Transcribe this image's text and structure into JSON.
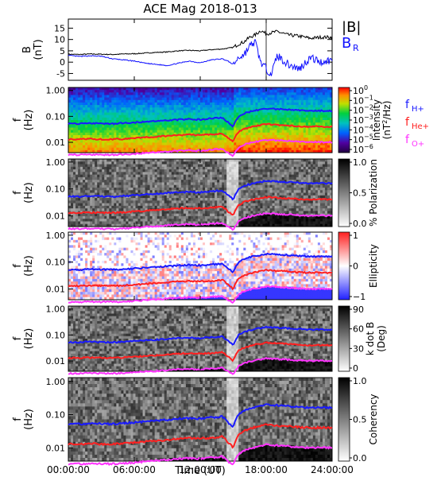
{
  "chart_data": {
    "type": "line",
    "title": "ACE Mag 2018-013",
    "xlabel": "Time (UT)",
    "x_ticks": [
      "00:00:00",
      "06:00:00",
      "12:00:00",
      "18:00:00",
      "24:00:00"
    ],
    "x_tick_hours": [
      0,
      6,
      12,
      18,
      24
    ],
    "xlim_hours": [
      0,
      24
    ],
    "colors": {
      "B_total": "#000000",
      "B_R": "#1010ff",
      "f_H": "#1a1aff",
      "f_He": "#ff2020",
      "f_O": "#ff33ff"
    },
    "gyrofrequency_series": [
      {
        "label": "f",
        "sub": "H+",
        "key": "f_H"
      },
      {
        "label": "f",
        "sub": "He+",
        "key": "f_He"
      },
      {
        "label": "f",
        "sub": "O+",
        "key": "f_O"
      }
    ],
    "panels": [
      {
        "id": "bfield",
        "ylabel": [
          "B",
          "(nT)"
        ],
        "ylim": [
          -8,
          19
        ],
        "yticks": [
          15,
          10,
          5,
          0,
          -5
        ],
        "legend": [
          {
            "label": "|B|",
            "sub": "",
            "color": "#000000"
          },
          {
            "label": "B",
            "sub": "R",
            "color": "#1010ff"
          }
        ],
        "series": [
          {
            "key": "B_total",
            "x": [
              0,
              1,
              2,
              3,
              4,
              5,
              6,
              7,
              8,
              9,
              10,
              11,
              12,
              13,
              14,
              15,
              15.5,
              16,
              16.5,
              17,
              17.5,
              18,
              18.5,
              19,
              20,
              21,
              22,
              23,
              24
            ],
            "y": [
              3.5,
              3.4,
              3.6,
              3.5,
              3.4,
              3.6,
              3.7,
              4.0,
              4.3,
              4.5,
              5.0,
              5.2,
              5.0,
              5.5,
              5.8,
              6.5,
              8,
              9,
              11,
              12,
              14,
              12.5,
              13,
              13.5,
              12,
              11.5,
              10.5,
              11,
              11
            ]
          },
          {
            "key": "B_R",
            "x": [
              0,
              1,
              2,
              3,
              4,
              5,
              6,
              7,
              8,
              9,
              10,
              11,
              12,
              13,
              14,
              14.5,
              15,
              15.5,
              16,
              16.5,
              17,
              17.5,
              18,
              18.5,
              19,
              20,
              21,
              22,
              23,
              24
            ],
            "y": [
              3.0,
              2.5,
              2.8,
              2.6,
              1.5,
              1.0,
              0.5,
              -0.5,
              -1.0,
              -1.5,
              -0.5,
              0.5,
              -0.3,
              1.0,
              1.5,
              0.5,
              -1.0,
              2.0,
              3.5,
              7,
              9,
              0,
              -3,
              -5,
              3,
              -1,
              -3,
              2,
              0,
              1
            ]
          }
        ]
      },
      {
        "id": "intensity",
        "ylabel": [
          "f",
          "(Hz)"
        ],
        "yticks": [
          "1.00",
          "0.10",
          "0.01"
        ],
        "ylim_log": [
          0.004,
          1.3
        ],
        "colorbar_ticks": [
          "10",
          "10",
          "10",
          "10",
          "10",
          "10",
          "10"
        ],
        "colorbar_exps": [
          "0",
          "−1",
          "−2",
          "−3",
          "−4",
          "−5",
          "−6"
        ],
        "colorbar_label": "Intensity",
        "colorbar_label2": "(nT",
        "colorbar_label_sup": "2",
        "colorbar_label3": "/Hz)",
        "colormap": "spectral",
        "show_gyro_labels": true
      },
      {
        "id": "polarization",
        "ylabel": [
          "f",
          "(Hz)"
        ],
        "yticks": [
          "1.00",
          "0.10",
          "0.01"
        ],
        "ylim_log": [
          0.004,
          1.3
        ],
        "colorbar_ticks": [
          "1.0",
          "0.5",
          "0.0"
        ],
        "colorbar_label": "% Polarization",
        "colormap": "gray"
      },
      {
        "id": "ellipticity",
        "ylabel": [
          "f",
          "(Hz)"
        ],
        "yticks": [
          "1.00",
          "0.10",
          "0.01"
        ],
        "ylim_log": [
          0.004,
          1.3
        ],
        "colorbar_ticks": [
          "1",
          "0",
          "−1"
        ],
        "colorbar_label": "Ellipticity",
        "colormap": "bwr"
      },
      {
        "id": "kdotb",
        "ylabel": [
          "f",
          "(Hz)"
        ],
        "yticks": [
          "1.00",
          "0.10",
          "0.01"
        ],
        "ylim_log": [
          0.004,
          1.3
        ],
        "colorbar_ticks": [
          "90",
          "60",
          "30",
          "0"
        ],
        "colorbar_label": "k dot B",
        "colorbar_label2": "(Deg)",
        "colormap": "gray"
      },
      {
        "id": "coherency",
        "ylabel": [
          "f",
          "(Hz)"
        ],
        "yticks": [
          "1.00",
          "0.10",
          "0.01"
        ],
        "ylim_log": [
          0.004,
          1.3
        ],
        "colorbar_ticks": [
          "1.0",
          "0.5",
          "0.0"
        ],
        "colorbar_label": "Coherency",
        "colormap": "gray"
      }
    ],
    "gyrofrequencies": {
      "x": [
        0,
        1,
        2,
        3,
        4,
        5,
        6,
        7,
        8,
        9,
        10,
        11,
        12,
        13,
        14,
        14.5,
        15,
        15.5,
        16,
        17,
        18,
        19,
        20,
        21,
        22,
        23,
        24
      ],
      "f_H": [
        0.053,
        0.052,
        0.055,
        0.053,
        0.052,
        0.055,
        0.058,
        0.062,
        0.066,
        0.07,
        0.075,
        0.078,
        0.075,
        0.082,
        0.088,
        0.06,
        0.04,
        0.1,
        0.13,
        0.17,
        0.2,
        0.19,
        0.18,
        0.17,
        0.16,
        0.165,
        0.16
      ],
      "f_He": [
        0.013,
        0.013,
        0.0135,
        0.013,
        0.013,
        0.0135,
        0.0145,
        0.0155,
        0.0165,
        0.0175,
        0.019,
        0.0195,
        0.019,
        0.02,
        0.022,
        0.015,
        0.01,
        0.025,
        0.033,
        0.042,
        0.05,
        0.047,
        0.045,
        0.042,
        0.04,
        0.041,
        0.04
      ],
      "f_O": [
        0.0033,
        0.0033,
        0.0034,
        0.0033,
        0.0033,
        0.0034,
        0.0036,
        0.0039,
        0.0041,
        0.0044,
        0.0047,
        0.0049,
        0.0047,
        0.0051,
        0.0055,
        0.004,
        0.003,
        0.0063,
        0.0082,
        0.0105,
        0.0125,
        0.0118,
        0.0112,
        0.0105,
        0.01,
        0.0103,
        0.01
      ]
    }
  }
}
